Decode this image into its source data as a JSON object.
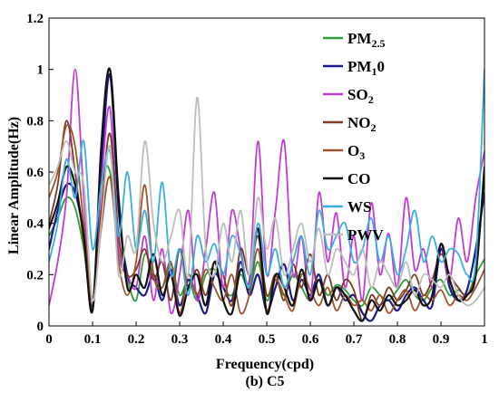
{
  "chart_data": {
    "type": "line",
    "caption": "(b) C5",
    "xlabel": "Frequency(cpd)",
    "ylabel": "Linear Amplitude(Hz)",
    "xlim": [
      0,
      1
    ],
    "ylim": [
      0,
      1.2
    ],
    "xticks": [
      "0",
      "0.1",
      "0.2",
      "0.3",
      "0.4",
      "0.5",
      "0.6",
      "0.7",
      "0.8",
      "0.9",
      "1"
    ],
    "yticks": [
      "0",
      "0.2",
      "0.4",
      "0.6",
      "0.8",
      "1",
      "1.2"
    ],
    "grid": false,
    "legend_position": "top-right",
    "series": [
      {
        "name": "PM2.5",
        "label_parts": [
          [
            "PM",
            ""
          ],
          [
            "2.5",
            "sub"
          ]
        ],
        "color": "#2e9e3a",
        "x": [
          0,
          0.02,
          0.04,
          0.06,
          0.08,
          0.1,
          0.12,
          0.14,
          0.16,
          0.18,
          0.2,
          0.22,
          0.24,
          0.26,
          0.28,
          0.3,
          0.32,
          0.34,
          0.36,
          0.38,
          0.4,
          0.42,
          0.44,
          0.46,
          0.48,
          0.5,
          0.52,
          0.54,
          0.56,
          0.58,
          0.6,
          0.62,
          0.64,
          0.66,
          0.68,
          0.7,
          0.72,
          0.74,
          0.76,
          0.78,
          0.8,
          0.82,
          0.84,
          0.86,
          0.88,
          0.9,
          0.92,
          0.94,
          0.96,
          0.98,
          1
        ],
        "y": [
          0.35,
          0.42,
          0.5,
          0.46,
          0.3,
          0.08,
          0.55,
          0.6,
          0.3,
          0.18,
          0.1,
          0.28,
          0.2,
          0.15,
          0.24,
          0.12,
          0.18,
          0.1,
          0.2,
          0.22,
          0.15,
          0.12,
          0.2,
          0.14,
          0.25,
          0.1,
          0.18,
          0.12,
          0.2,
          0.15,
          0.1,
          0.18,
          0.12,
          0.16,
          0.14,
          0.1,
          0.08,
          0.15,
          0.12,
          0.1,
          0.14,
          0.18,
          0.12,
          0.1,
          0.15,
          0.18,
          0.12,
          0.14,
          0.12,
          0.2,
          0.26
        ]
      },
      {
        "name": "PM10",
        "label_parts": [
          [
            "PM",
            ""
          ],
          [
            "1",
            "sub"
          ],
          [
            "0",
            ""
          ]
        ],
        "color": "#1a1a8c",
        "x": [
          0,
          0.02,
          0.04,
          0.06,
          0.08,
          0.1,
          0.12,
          0.14,
          0.16,
          0.18,
          0.2,
          0.22,
          0.24,
          0.26,
          0.28,
          0.3,
          0.32,
          0.34,
          0.36,
          0.38,
          0.4,
          0.42,
          0.44,
          0.46,
          0.48,
          0.5,
          0.52,
          0.54,
          0.56,
          0.58,
          0.6,
          0.62,
          0.64,
          0.66,
          0.68,
          0.7,
          0.72,
          0.74,
          0.76,
          0.78,
          0.8,
          0.82,
          0.84,
          0.86,
          0.88,
          0.9,
          0.92,
          0.94,
          0.96,
          0.98,
          1
        ],
        "y": [
          0.3,
          0.45,
          0.55,
          0.52,
          0.35,
          0.06,
          0.6,
          0.98,
          0.45,
          0.2,
          0.15,
          0.12,
          0.2,
          0.1,
          0.22,
          0.08,
          0.18,
          0.12,
          0.05,
          0.2,
          0.15,
          0.1,
          0.25,
          0.12,
          0.2,
          0.06,
          0.15,
          0.24,
          0.1,
          0.18,
          0.12,
          0.2,
          0.08,
          0.15,
          0.1,
          0.12,
          0.05,
          0.02,
          0.08,
          0.1,
          0.06,
          0.12,
          0.15,
          0.1,
          0.08,
          0.3,
          0.15,
          0.1,
          0.14,
          0.3,
          0.52
        ]
      },
      {
        "name": "SO2",
        "label_parts": [
          [
            "SO",
            ""
          ],
          [
            "2",
            "sub"
          ]
        ],
        "color": "#c23bd4",
        "x": [
          0,
          0.02,
          0.04,
          0.06,
          0.08,
          0.1,
          0.12,
          0.14,
          0.16,
          0.18,
          0.2,
          0.22,
          0.24,
          0.26,
          0.28,
          0.3,
          0.32,
          0.34,
          0.36,
          0.38,
          0.4,
          0.42,
          0.44,
          0.46,
          0.48,
          0.5,
          0.52,
          0.54,
          0.56,
          0.58,
          0.6,
          0.62,
          0.64,
          0.66,
          0.68,
          0.7,
          0.72,
          0.74,
          0.76,
          0.78,
          0.8,
          0.82,
          0.84,
          0.86,
          0.88,
          0.9,
          0.92,
          0.94,
          0.96,
          0.98,
          1
        ],
        "y": [
          0.08,
          0.25,
          0.5,
          1.0,
          0.5,
          0.1,
          0.55,
          0.85,
          0.3,
          0.2,
          0.15,
          0.35,
          0.1,
          0.3,
          0.05,
          0.2,
          0.45,
          0.1,
          0.3,
          0.52,
          0.15,
          0.45,
          0.3,
          0.18,
          0.72,
          0.2,
          0.45,
          0.72,
          0.2,
          0.35,
          0.1,
          0.52,
          0.25,
          0.44,
          0.15,
          0.35,
          0.1,
          0.48,
          0.2,
          0.36,
          0.15,
          0.5,
          0.22,
          0.3,
          0.15,
          0.32,
          0.18,
          0.42,
          0.25,
          0.5,
          0.68
        ]
      },
      {
        "name": "NO2",
        "label_parts": [
          [
            "NO",
            ""
          ],
          [
            "2",
            "sub"
          ]
        ],
        "color": "#7a3b22",
        "x": [
          0,
          0.02,
          0.04,
          0.06,
          0.08,
          0.1,
          0.12,
          0.14,
          0.16,
          0.18,
          0.2,
          0.22,
          0.24,
          0.26,
          0.28,
          0.3,
          0.32,
          0.34,
          0.36,
          0.38,
          0.4,
          0.42,
          0.44,
          0.46,
          0.48,
          0.5,
          0.52,
          0.54,
          0.56,
          0.58,
          0.6,
          0.62,
          0.64,
          0.66,
          0.68,
          0.7,
          0.72,
          0.74,
          0.76,
          0.78,
          0.8,
          0.82,
          0.84,
          0.86,
          0.88,
          0.9,
          0.92,
          0.94,
          0.96,
          0.98,
          1
        ],
        "y": [
          0.4,
          0.55,
          0.8,
          0.6,
          0.32,
          0.08,
          0.45,
          0.75,
          0.35,
          0.2,
          0.22,
          0.3,
          0.18,
          0.25,
          0.1,
          0.3,
          0.15,
          0.22,
          0.12,
          0.25,
          0.2,
          0.08,
          0.3,
          0.2,
          0.35,
          0.12,
          0.2,
          0.1,
          0.24,
          0.15,
          0.28,
          0.12,
          0.2,
          0.1,
          0.18,
          0.14,
          0.02,
          0.12,
          0.08,
          0.15,
          0.1,
          0.14,
          0.2,
          0.12,
          0.18,
          0.28,
          0.2,
          0.15,
          0.12,
          0.22,
          0.6
        ]
      },
      {
        "name": "O3",
        "label_parts": [
          [
            "O",
            ""
          ],
          [
            "3",
            "sub"
          ]
        ],
        "color": "#a0522d",
        "x": [
          0,
          0.02,
          0.04,
          0.06,
          0.08,
          0.1,
          0.12,
          0.14,
          0.16,
          0.18,
          0.2,
          0.22,
          0.24,
          0.26,
          0.28,
          0.3,
          0.32,
          0.34,
          0.36,
          0.38,
          0.4,
          0.42,
          0.44,
          0.46,
          0.48,
          0.5,
          0.52,
          0.54,
          0.56,
          0.58,
          0.6,
          0.62,
          0.64,
          0.66,
          0.68,
          0.7,
          0.72,
          0.74,
          0.76,
          0.78,
          0.8,
          0.82,
          0.84,
          0.86,
          0.88,
          0.9,
          0.92,
          0.94,
          0.96,
          0.98,
          1
        ],
        "y": [
          0.5,
          0.6,
          0.78,
          0.7,
          0.4,
          0.1,
          0.38,
          0.58,
          0.25,
          0.12,
          0.25,
          0.55,
          0.2,
          0.15,
          0.25,
          0.05,
          0.2,
          0.12,
          0.22,
          0.15,
          0.1,
          0.2,
          0.05,
          0.12,
          0.3,
          0.06,
          0.18,
          0.12,
          0.06,
          0.2,
          0.14,
          0.08,
          0.15,
          0.06,
          0.12,
          0.08,
          0.1,
          0.06,
          0.12,
          0.05,
          0.1,
          0.14,
          0.06,
          0.12,
          0.1,
          0.14,
          0.08,
          0.12,
          0.1,
          0.15,
          0.22
        ]
      },
      {
        "name": "CO",
        "label_parts": [
          [
            "CO",
            ""
          ]
        ],
        "color": "#111111",
        "x": [
          0,
          0.02,
          0.04,
          0.06,
          0.08,
          0.1,
          0.12,
          0.14,
          0.16,
          0.18,
          0.2,
          0.22,
          0.24,
          0.26,
          0.28,
          0.3,
          0.32,
          0.34,
          0.36,
          0.38,
          0.4,
          0.42,
          0.44,
          0.46,
          0.48,
          0.5,
          0.52,
          0.54,
          0.56,
          0.58,
          0.6,
          0.62,
          0.64,
          0.66,
          0.68,
          0.7,
          0.72,
          0.74,
          0.76,
          0.78,
          0.8,
          0.82,
          0.84,
          0.86,
          0.88,
          0.9,
          0.92,
          0.94,
          0.96,
          0.98,
          1
        ],
        "y": [
          0.38,
          0.48,
          0.62,
          0.55,
          0.35,
          0.06,
          0.7,
          1.0,
          0.5,
          0.15,
          0.2,
          0.15,
          0.28,
          0.12,
          0.2,
          0.04,
          0.15,
          0.2,
          0.08,
          0.25,
          0.1,
          0.05,
          0.22,
          0.15,
          0.38,
          0.05,
          0.2,
          0.15,
          0.08,
          0.22,
          0.1,
          0.18,
          0.08,
          0.15,
          0.12,
          0.06,
          0.02,
          0.1,
          0.06,
          0.12,
          0.08,
          0.1,
          0.14,
          0.08,
          0.12,
          0.32,
          0.18,
          0.1,
          0.12,
          0.2,
          0.62
        ]
      },
      {
        "name": "WS",
        "label_parts": [
          [
            "WS",
            ""
          ]
        ],
        "color": "#3aaee0",
        "x": [
          0,
          0.02,
          0.04,
          0.06,
          0.08,
          0.1,
          0.12,
          0.14,
          0.16,
          0.18,
          0.2,
          0.22,
          0.24,
          0.26,
          0.28,
          0.3,
          0.32,
          0.34,
          0.36,
          0.38,
          0.4,
          0.42,
          0.44,
          0.46,
          0.48,
          0.5,
          0.52,
          0.54,
          0.56,
          0.58,
          0.6,
          0.62,
          0.64,
          0.66,
          0.68,
          0.7,
          0.72,
          0.74,
          0.76,
          0.78,
          0.8,
          0.82,
          0.84,
          0.86,
          0.88,
          0.9,
          0.92,
          0.94,
          0.96,
          0.98,
          1
        ],
        "y": [
          0.25,
          0.4,
          0.65,
          0.5,
          0.72,
          0.3,
          0.55,
          0.68,
          0.35,
          0.6,
          0.3,
          0.45,
          0.25,
          0.56,
          0.2,
          0.3,
          0.12,
          0.35,
          0.25,
          0.32,
          0.2,
          0.35,
          0.28,
          0.15,
          0.4,
          0.2,
          0.3,
          0.15,
          0.25,
          0.35,
          0.2,
          0.45,
          0.3,
          0.35,
          0.4,
          0.25,
          0.3,
          0.42,
          0.25,
          0.35,
          0.2,
          0.3,
          0.45,
          0.25,
          0.35,
          0.25,
          0.3,
          0.28,
          0.2,
          0.25,
          1.0
        ]
      },
      {
        "name": "PWV",
        "label_parts": [
          [
            "PWV",
            ""
          ]
        ],
        "color": "#bdbdbd",
        "x": [
          0,
          0.02,
          0.04,
          0.06,
          0.08,
          0.1,
          0.12,
          0.14,
          0.16,
          0.18,
          0.2,
          0.22,
          0.24,
          0.26,
          0.28,
          0.3,
          0.32,
          0.34,
          0.36,
          0.38,
          0.4,
          0.42,
          0.44,
          0.46,
          0.48,
          0.5,
          0.52,
          0.54,
          0.56,
          0.58,
          0.6,
          0.62,
          0.64,
          0.66,
          0.68,
          0.7,
          0.72,
          0.74,
          0.76,
          0.78,
          0.8,
          0.82,
          0.84,
          0.86,
          0.88,
          0.9,
          0.92,
          0.94,
          0.96,
          0.98,
          1
        ],
        "y": [
          0.55,
          0.62,
          0.72,
          0.6,
          0.55,
          0.1,
          0.4,
          0.7,
          0.2,
          0.35,
          0.3,
          0.72,
          0.4,
          0.25,
          0.35,
          0.45,
          0.2,
          0.89,
          0.3,
          0.2,
          0.4,
          0.25,
          0.45,
          0.2,
          0.5,
          0.3,
          0.42,
          0.2,
          0.3,
          0.4,
          0.25,
          0.38,
          0.2,
          0.3,
          0.25,
          0.2,
          0.3,
          0.15,
          0.25,
          0.2,
          0.15,
          0.25,
          0.12,
          0.2,
          0.18,
          0.15,
          0.2,
          0.12,
          0.08,
          0.1,
          0.15
        ]
      }
    ]
  }
}
